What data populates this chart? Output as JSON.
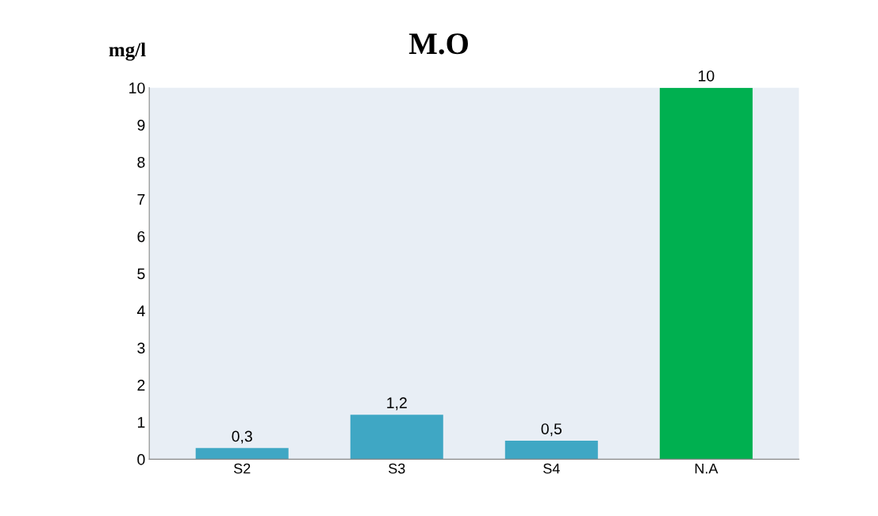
{
  "chart_data": {
    "type": "bar",
    "title": "M.O",
    "ylabel": "mg/l",
    "categories": [
      "S2",
      "S3",
      "S4",
      "N.A"
    ],
    "values": [
      0.3,
      1.2,
      0.5,
      10
    ],
    "colors": [
      "#3fa7c4",
      "#3fa7c4",
      "#3fa7c4",
      "#00b050"
    ],
    "value_labels": [
      "0,3",
      "1,2",
      "0,5",
      "10"
    ],
    "ylim": [
      0,
      10
    ],
    "yticks": [
      0,
      1,
      2,
      3,
      4,
      5,
      6,
      7,
      8,
      9,
      10
    ],
    "grid": false
  }
}
